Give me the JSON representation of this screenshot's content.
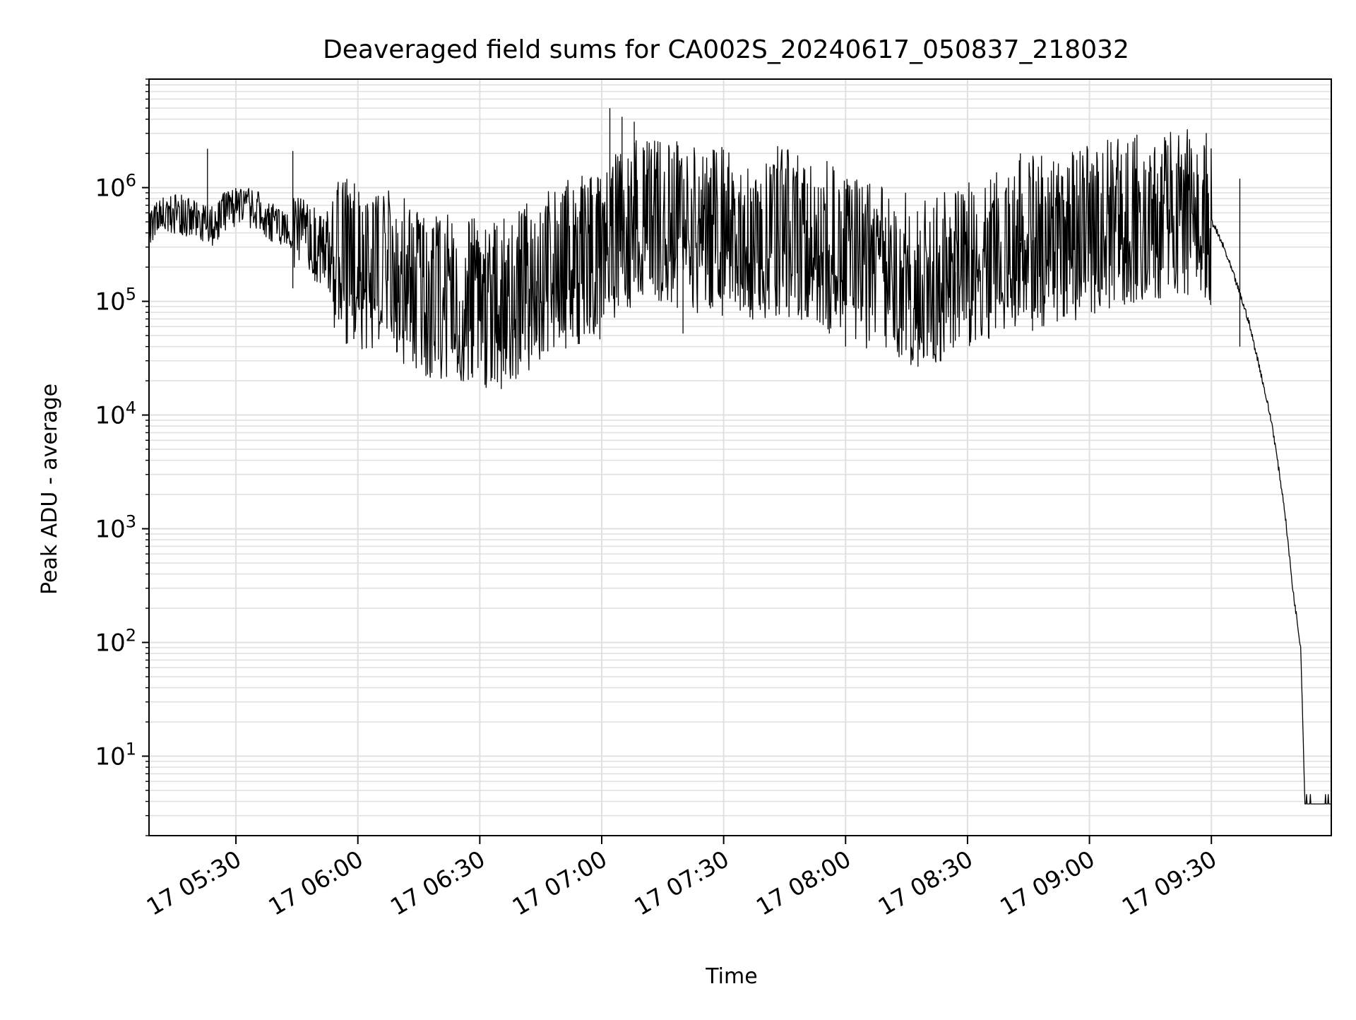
{
  "chart_data": {
    "type": "line",
    "title": "Deaveraged field sums for CA002S_20240617_050837_218032",
    "xlabel": "Time",
    "ylabel": "Peak ADU - average",
    "yscale": "log",
    "grid": true,
    "legend": "none",
    "line_color": "#000000",
    "grid_color": "#e0e0e0",
    "xlim": [
      "2024-06-17 05:08:37",
      "2024-06-17 09:59:30"
    ],
    "ylim": [
      2,
      9000000
    ],
    "x_ticks": [
      {
        "value": "2024-06-17 05:30",
        "label": "17 05:30"
      },
      {
        "value": "2024-06-17 06:00",
        "label": "17 06:00"
      },
      {
        "value": "2024-06-17 06:30",
        "label": "17 06:30"
      },
      {
        "value": "2024-06-17 07:00",
        "label": "17 07:00"
      },
      {
        "value": "2024-06-17 07:30",
        "label": "17 07:30"
      },
      {
        "value": "2024-06-17 08:00",
        "label": "17 08:00"
      },
      {
        "value": "2024-06-17 08:30",
        "label": "17 08:30"
      },
      {
        "value": "2024-06-17 09:00",
        "label": "17 09:00"
      },
      {
        "value": "2024-06-17 09:30",
        "label": "17 09:30"
      }
    ],
    "y_ticks": [
      {
        "value": 10,
        "base": "10",
        "exp": "1"
      },
      {
        "value": 100,
        "base": "10",
        "exp": "2"
      },
      {
        "value": 1000,
        "base": "10",
        "exp": "3"
      },
      {
        "value": 10000,
        "base": "10",
        "exp": "4"
      },
      {
        "value": 100000,
        "base": "10",
        "exp": "5"
      },
      {
        "value": 1000000,
        "base": "10",
        "exp": "6"
      }
    ],
    "series": [
      {
        "x": [
          "2024-06-17 05:08:37",
          "2024-06-17 05:12",
          "2024-06-17 05:16",
          "2024-06-17 05:20",
          "2024-06-17 05:24",
          "2024-06-17 05:28",
          "2024-06-17 05:32",
          "2024-06-17 05:36",
          "2024-06-17 05:40",
          "2024-06-17 05:44",
          "2024-06-17 05:48",
          "2024-06-17 05:52",
          "2024-06-17 05:56",
          "2024-06-17 06:00",
          "2024-06-17 06:05",
          "2024-06-17 06:10",
          "2024-06-17 06:15",
          "2024-06-17 06:20",
          "2024-06-17 06:25",
          "2024-06-17 06:30",
          "2024-06-17 06:35",
          "2024-06-17 06:40",
          "2024-06-17 06:45",
          "2024-06-17 06:50",
          "2024-06-17 06:55",
          "2024-06-17 07:00",
          "2024-06-17 07:05",
          "2024-06-17 07:10",
          "2024-06-17 07:15",
          "2024-06-17 07:20",
          "2024-06-17 07:25",
          "2024-06-17 07:30",
          "2024-06-17 07:35",
          "2024-06-17 07:40",
          "2024-06-17 07:45",
          "2024-06-17 07:50",
          "2024-06-17 07:55",
          "2024-06-17 08:00",
          "2024-06-17 08:05",
          "2024-06-17 08:10",
          "2024-06-17 08:15",
          "2024-06-17 08:20",
          "2024-06-17 08:25",
          "2024-06-17 08:30",
          "2024-06-17 08:35",
          "2024-06-17 08:40",
          "2024-06-17 08:45",
          "2024-06-17 08:50",
          "2024-06-17 08:55",
          "2024-06-17 09:00",
          "2024-06-17 09:05",
          "2024-06-17 09:10",
          "2024-06-17 09:15",
          "2024-06-17 09:20",
          "2024-06-17 09:25",
          "2024-06-17 09:30",
          "2024-06-17 09:33",
          "2024-06-17 09:36",
          "2024-06-17 09:39",
          "2024-06-17 09:42",
          "2024-06-17 09:45",
          "2024-06-17 09:48",
          "2024-06-17 09:50",
          "2024-06-17 09:52",
          "2024-06-17 09:53",
          "2024-06-17 09:54",
          "2024-06-17 09:56",
          "2024-06-17 09:59:30"
        ],
        "y": [
          450000,
          550000,
          600000,
          500000,
          450000,
          650000,
          700000,
          600000,
          450000,
          420000,
          320000,
          280000,
          240000,
          210000,
          190000,
          160000,
          130000,
          110000,
          100000,
          95000,
          90000,
          120000,
          160000,
          200000,
          230000,
          250000,
          420000,
          520000,
          500000,
          450000,
          400000,
          420000,
          380000,
          400000,
          420000,
          360000,
          320000,
          300000,
          200000,
          180000,
          160000,
          140000,
          170000,
          200000,
          250000,
          320000,
          350000,
          330000,
          360000,
          420000,
          480000,
          520000,
          550000,
          600000,
          650000,
          520000,
          300000,
          150000,
          70000,
          25000,
          8000,
          1500,
          300,
          90,
          4,
          4,
          4,
          4
        ]
      }
    ],
    "extremes": [
      {
        "x": "2024-06-17 05:23",
        "y": 2200000
      },
      {
        "x": "2024-06-17 05:44",
        "y": 2100000
      },
      {
        "x": "2024-06-17 05:44",
        "y": 130000
      },
      {
        "x": "2024-06-17 06:25",
        "y": 40000
      },
      {
        "x": "2024-06-17 06:44",
        "y": 45000
      },
      {
        "x": "2024-06-17 07:02",
        "y": 5000000
      },
      {
        "x": "2024-06-17 07:05",
        "y": 4200000
      },
      {
        "x": "2024-06-17 07:08",
        "y": 3800000
      },
      {
        "x": "2024-06-17 07:20",
        "y": 52000
      },
      {
        "x": "2024-06-17 07:56",
        "y": 52000
      },
      {
        "x": "2024-06-17 08:00",
        "y": 40000
      },
      {
        "x": "2024-06-17 08:27",
        "y": 45000
      },
      {
        "x": "2024-06-17 08:43",
        "y": 2000000
      },
      {
        "x": "2024-06-17 08:46",
        "y": 55000
      },
      {
        "x": "2024-06-17 09:37",
        "y": 1200000
      },
      {
        "x": "2024-06-17 09:37",
        "y": 40000
      }
    ]
  }
}
